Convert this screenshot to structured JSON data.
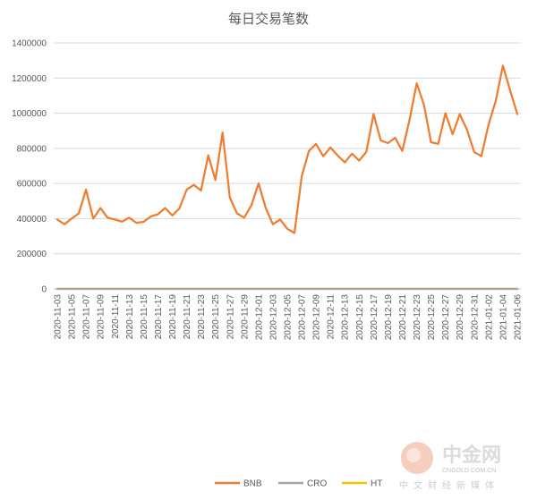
{
  "chart_data": {
    "type": "line",
    "title": "每日交易笔数",
    "xlabel": "",
    "ylabel": "",
    "ylim": [
      0,
      1400000
    ],
    "yticks": [
      "1400000",
      "1200000",
      "1000000",
      "800000",
      "600000",
      "400000",
      "200000",
      "0"
    ],
    "grid": true,
    "legend_position": "bottom",
    "x_tick_labels": [
      "2020-11-03",
      "2020-11-05",
      "2020-11-07",
      "2020-11-09",
      "2020-11-11",
      "2020-11-13",
      "2020-11-15",
      "2020-11-17",
      "2020-11-19",
      "2020-11-21",
      "2020-11-23",
      "2020-11-25",
      "2020-11-27",
      "2020-11-29",
      "2020-12-01",
      "2020-12-03",
      "2020-12-05",
      "2020-12-07",
      "2020-12-09",
      "2020-12-11",
      "2020-12-13",
      "2020-12-15",
      "2020-12-17",
      "2020-12-19",
      "2020-12-21",
      "2020-12-23",
      "2020-12-25",
      "2020-12-27",
      "2020-12-29",
      "2020-12-31",
      "2021-01-02",
      "2021-01-04",
      "2021-01-06"
    ],
    "x": [
      "2020-11-03",
      "2020-11-04",
      "2020-11-05",
      "2020-11-06",
      "2020-11-07",
      "2020-11-08",
      "2020-11-09",
      "2020-11-10",
      "2020-11-11",
      "2020-11-12",
      "2020-11-13",
      "2020-11-14",
      "2020-11-15",
      "2020-11-16",
      "2020-11-17",
      "2020-11-18",
      "2020-11-19",
      "2020-11-20",
      "2020-11-21",
      "2020-11-22",
      "2020-11-23",
      "2020-11-24",
      "2020-11-25",
      "2020-11-26",
      "2020-11-27",
      "2020-11-28",
      "2020-11-29",
      "2020-11-30",
      "2020-12-01",
      "2020-12-02",
      "2020-12-03",
      "2020-12-04",
      "2020-12-05",
      "2020-12-06",
      "2020-12-07",
      "2020-12-08",
      "2020-12-09",
      "2020-12-10",
      "2020-12-11",
      "2020-12-12",
      "2020-12-13",
      "2020-12-14",
      "2020-12-15",
      "2020-12-16",
      "2020-12-17",
      "2020-12-18",
      "2020-12-19",
      "2020-12-20",
      "2020-12-21",
      "2020-12-22",
      "2020-12-23",
      "2020-12-24",
      "2020-12-25",
      "2020-12-26",
      "2020-12-27",
      "2020-12-28",
      "2020-12-29",
      "2020-12-30",
      "2020-12-31",
      "2021-01-01",
      "2021-01-02",
      "2021-01-03",
      "2021-01-04",
      "2021-01-05",
      "2021-01-06"
    ],
    "series": [
      {
        "name": "BNB",
        "color": "#ED7D31",
        "values": [
          395000,
          368000,
          400000,
          430000,
          565000,
          400000,
          460000,
          405000,
          395000,
          383000,
          405000,
          376000,
          382000,
          412000,
          425000,
          460000,
          418000,
          458000,
          565000,
          592000,
          560000,
          760000,
          620000,
          890000,
          520000,
          430000,
          405000,
          475000,
          600000,
          460000,
          368000,
          395000,
          342000,
          318000,
          640000,
          785000,
          825000,
          755000,
          805000,
          760000,
          720000,
          770000,
          730000,
          780000,
          995000,
          845000,
          830000,
          860000,
          785000,
          960000,
          1170000,
          1050000,
          835000,
          825000,
          1000000,
          880000,
          995000,
          905000,
          780000,
          755000,
          935000,
          1070000,
          1270000,
          1130000,
          995000
        ]
      },
      {
        "name": "CRO",
        "color": "#A5A5A5",
        "values": [
          0,
          0,
          0,
          0,
          0,
          0,
          0,
          0,
          0,
          0,
          0,
          0,
          0,
          0,
          0,
          0,
          0,
          0,
          0,
          0,
          0,
          0,
          0,
          0,
          0,
          0,
          0,
          0,
          0,
          0,
          0,
          0,
          0,
          0,
          0,
          0,
          0,
          0,
          0,
          0,
          0,
          0,
          0,
          0,
          0,
          0,
          0,
          0,
          0,
          0,
          0,
          0,
          0,
          0,
          0,
          0,
          0,
          0,
          0,
          0,
          0,
          0,
          0,
          0,
          0
        ]
      },
      {
        "name": "HT",
        "color": "#FFC000",
        "values": [
          1500,
          1500,
          1500,
          1500,
          1500,
          1500,
          1500,
          1500,
          1500,
          1500,
          1500,
          1500,
          1500,
          1500,
          1500,
          1500,
          1500,
          1500,
          1500,
          1500,
          1500,
          1500,
          1500,
          1500,
          1500,
          1500,
          1500,
          1500,
          1500,
          1500,
          1500,
          1500,
          1500,
          1500,
          1500,
          1500,
          1500,
          1500,
          1500,
          1500,
          1500,
          1500,
          1500,
          1500,
          1500,
          1500,
          1500,
          1500,
          1500,
          1500,
          1500,
          1500,
          1500,
          1500,
          1500,
          1500,
          1500,
          1500,
          1500,
          1500,
          1500,
          1500,
          1500,
          1500,
          1500
        ]
      }
    ]
  },
  "watermark": {
    "logo_text": "中金网",
    "site": "CNGOLD.COM.CN",
    "tagline": "中文财经新媒体"
  }
}
